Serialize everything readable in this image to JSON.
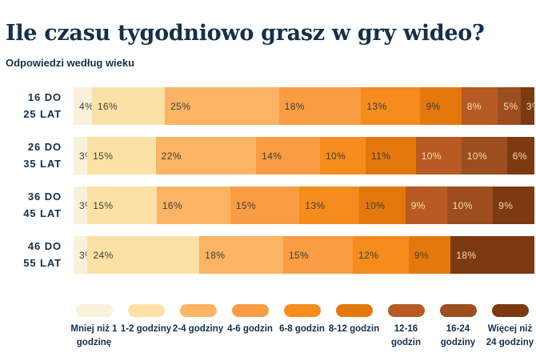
{
  "header": {
    "title": "Ile czasu tygodniowo grasz w gry wideo?",
    "subtitle": "Odpowiedzi według wieku"
  },
  "colors": {
    "background": "#FFFFFF",
    "text_navy": "#14304A",
    "value_label_dark": "#3E3E38",
    "value_label_light": "#F4DFAE",
    "series": [
      "#FAF1DA",
      "#FCE1A6",
      "#FBB464",
      "#FA9C44",
      "#F68B1E",
      "#E5780C",
      "#B75A23",
      "#9C4E1E",
      "#7D3A10"
    ]
  },
  "chart_data": {
    "type": "bar",
    "orientation": "horizontal-stacked",
    "unit": "%",
    "title": "Ile czasu tygodniowo grasz w gry wideo?",
    "subtitle": "Odpowiedzi według wieku",
    "legend_position": "bottom",
    "value_label_format": "{value}%",
    "light_text_from_series_index": 6,
    "categories": [
      "16 DO 25 LAT",
      "26 DO 35 LAT",
      "36 DO 45 LAT",
      "46 DO 55 LAT"
    ],
    "category_lines": [
      [
        "16 DO",
        "25 LAT"
      ],
      [
        "26 DO",
        "35 LAT"
      ],
      [
        "36 DO",
        "45 LAT"
      ],
      [
        "46 DO",
        "55 LAT"
      ]
    ],
    "series": [
      {
        "name": "Mniej niż 1 godzinę",
        "values": [
          4,
          3,
          3,
          3
        ]
      },
      {
        "name": "1-2 godziny",
        "values": [
          16,
          15,
          15,
          24
        ]
      },
      {
        "name": "2-4 godziny",
        "values": [
          25,
          22,
          16,
          18
        ]
      },
      {
        "name": "4-6 godzin",
        "values": [
          18,
          14,
          15,
          15
        ]
      },
      {
        "name": "6-8 godzin",
        "values": [
          13,
          10,
          13,
          12
        ]
      },
      {
        "name": "8-12 godzin",
        "values": [
          9,
          11,
          10,
          9
        ]
      },
      {
        "name": "12-16 godzin",
        "values": [
          8,
          10,
          9,
          0
        ]
      },
      {
        "name": "16-24 godziny",
        "values": [
          5,
          10,
          10,
          0
        ]
      },
      {
        "name": "Więcej niż 24 godziny",
        "values": [
          3,
          6,
          9,
          18
        ]
      }
    ]
  }
}
